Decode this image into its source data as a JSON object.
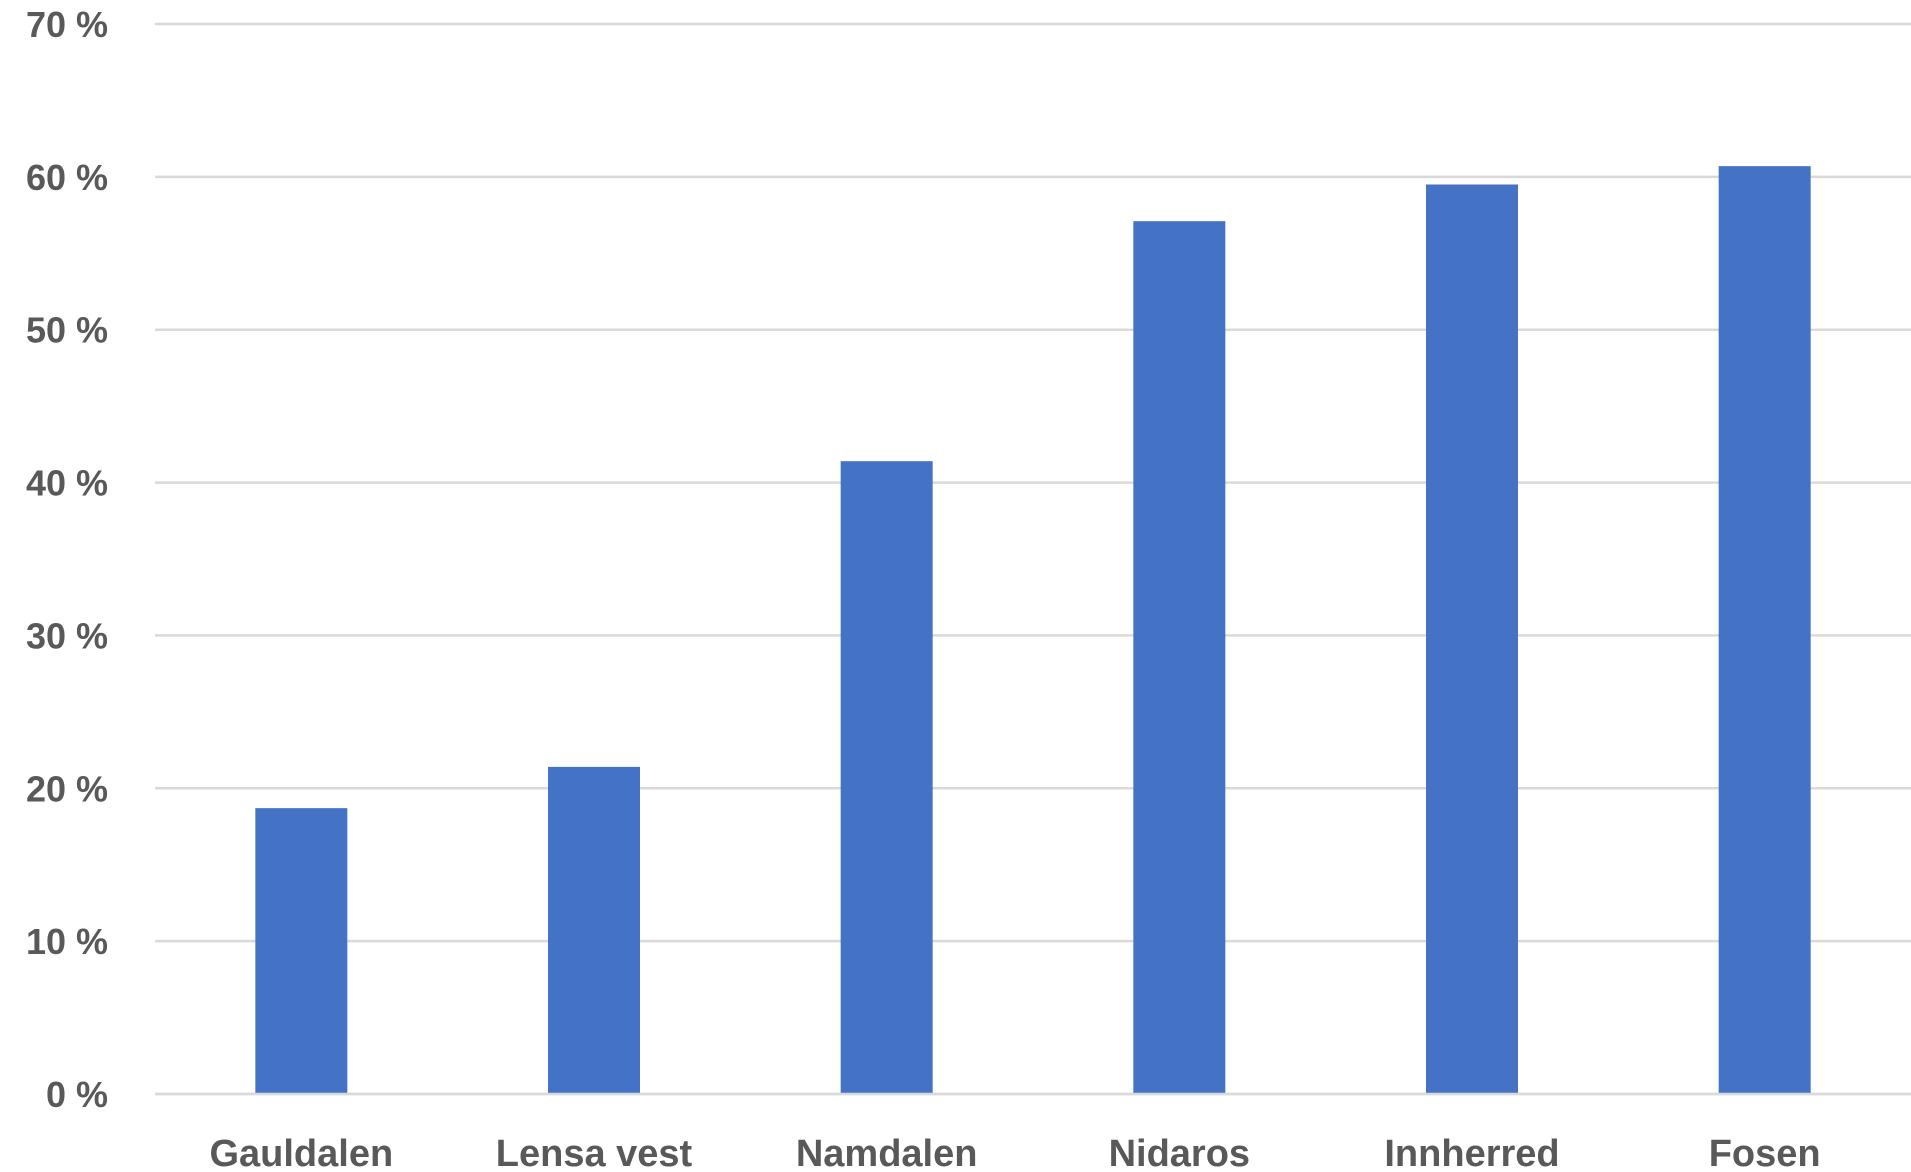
{
  "chart_data": {
    "type": "bar",
    "title": "",
    "xlabel": "",
    "ylabel": "",
    "categories": [
      "Gauldalen",
      "Lensa vest",
      "Namdalen",
      "Nidaros",
      "Innherred",
      "Fosen"
    ],
    "values": [
      18.7,
      21.4,
      41.4,
      57.1,
      59.5,
      60.7
    ],
    "ylim": [
      0,
      70
    ],
    "yticks": [
      0,
      10,
      20,
      30,
      40,
      50,
      60,
      70
    ],
    "ytick_labels": [
      "0 %",
      "10 %",
      "20 %",
      "30 %",
      "40 %",
      "50 %",
      "60 %",
      "70 %"
    ],
    "grid": true,
    "legend": "none",
    "bar_color": "#4472C4",
    "grid_color": "#D9D9D9",
    "label_color": "#595959"
  }
}
